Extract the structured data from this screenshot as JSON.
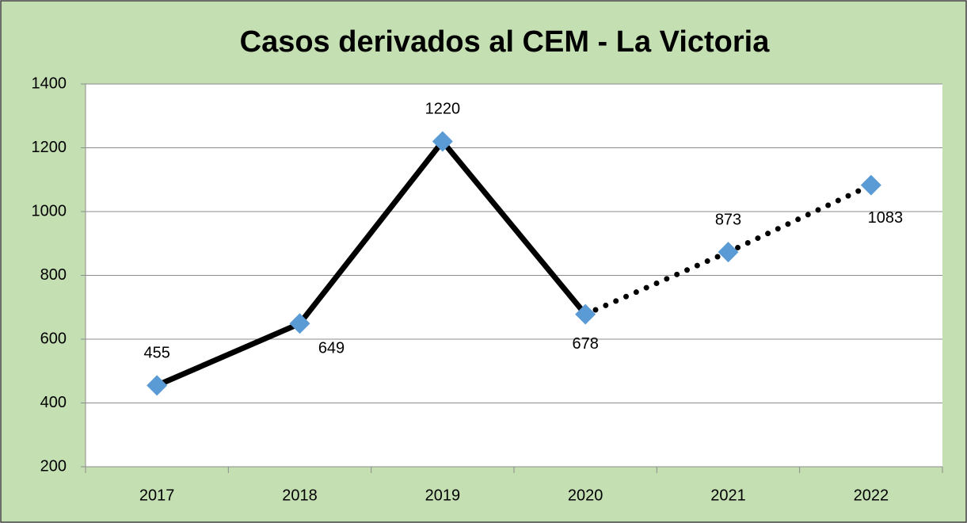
{
  "chart_data": {
    "type": "line",
    "title": "Casos derivados al CEM - La Victoria",
    "categories": [
      "2017",
      "2018",
      "2019",
      "2020",
      "2021",
      "2022"
    ],
    "values": [
      455,
      649,
      1220,
      678,
      873,
      1083
    ],
    "line_color": "#000000",
    "marker_color": "#5b9bd5",
    "marker": "diamond",
    "segment_styles": [
      "solid",
      "solid",
      "solid",
      "dotted",
      "dotted"
    ],
    "ylim": [
      200,
      1400
    ],
    "yticks": [
      200,
      400,
      600,
      800,
      1000,
      1200,
      1400
    ],
    "grid": true
  }
}
